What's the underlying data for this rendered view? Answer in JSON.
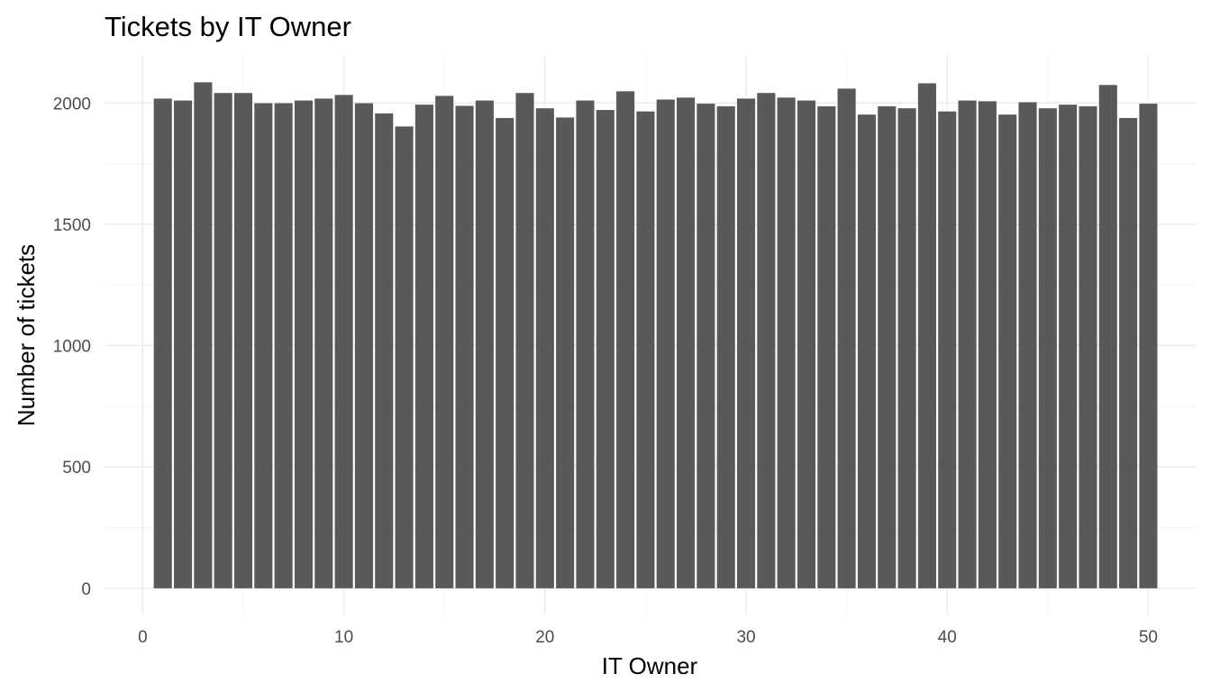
{
  "chart_data": {
    "type": "bar",
    "title": "Tickets by IT Owner",
    "xlabel": "IT Owner",
    "ylabel": "Number of tickets",
    "x": [
      1,
      2,
      3,
      4,
      5,
      6,
      7,
      8,
      9,
      10,
      11,
      12,
      13,
      14,
      15,
      16,
      17,
      18,
      19,
      20,
      21,
      22,
      23,
      24,
      25,
      26,
      27,
      28,
      29,
      30,
      31,
      32,
      33,
      34,
      35,
      36,
      37,
      38,
      39,
      40,
      41,
      42,
      43,
      44,
      45,
      46,
      47,
      48,
      49,
      50
    ],
    "values": [
      2018,
      2010,
      2085,
      2041,
      2041,
      1999,
      1999,
      2010,
      2018,
      2033,
      1999,
      1957,
      1903,
      1993,
      2029,
      1988,
      2010,
      1938,
      2041,
      1978,
      1940,
      2010,
      1971,
      2048,
      1965,
      2014,
      2022,
      1997,
      1986,
      2018,
      2041,
      2022,
      2010,
      1986,
      2059,
      1952,
      1986,
      1978,
      2081,
      1965,
      2010,
      2007,
      1952,
      2003,
      1978,
      1993,
      1986,
      2074,
      1938,
      1997
    ],
    "xlim": [
      -1.9,
      52.4
    ],
    "ylim": [
      -108,
      2194
    ],
    "x_ticks": [
      0,
      10,
      20,
      30,
      40,
      50
    ],
    "y_ticks": [
      0,
      500,
      1000,
      1500,
      2000
    ],
    "grid": true,
    "bar_color": "#595959",
    "grid_color": "#ebebeb"
  }
}
